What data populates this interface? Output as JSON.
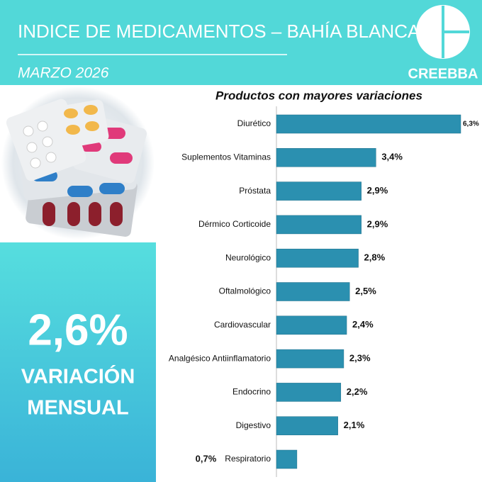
{
  "header": {
    "title": "INDICE DE MEDICAMENTOS – BAHÍA BLANCA",
    "date": "MARZO 2026",
    "brand": "CREEBBA"
  },
  "highlight": {
    "value": "2,6%",
    "line1": "VARIACIÓN",
    "line2": "MENSUAL"
  },
  "chart_data": {
    "type": "bar",
    "orientation": "horizontal",
    "title": "Productos con mayores variaciones",
    "categories": [
      "Diurético",
      "Suplementos Vitaminas",
      "Próstata",
      "Dérmico Corticoide",
      "Neurológico",
      "Oftalmológico",
      "Cardiovascular",
      "Analgésico Antiinflamatorio",
      "Endocrino",
      "Digestivo",
      "Respiratorio"
    ],
    "values": [
      6.3,
      3.4,
      2.9,
      2.9,
      2.8,
      2.5,
      2.4,
      2.3,
      2.2,
      2.1,
      0.7
    ],
    "value_labels": [
      "6,3%",
      "3,4%",
      "2,9%",
      "2,9%",
      "2,8%",
      "2,5%",
      "2,4%",
      "2,3%",
      "2,2%",
      "2,1%",
      "0,7%"
    ],
    "color": "#2b90b0"
  }
}
